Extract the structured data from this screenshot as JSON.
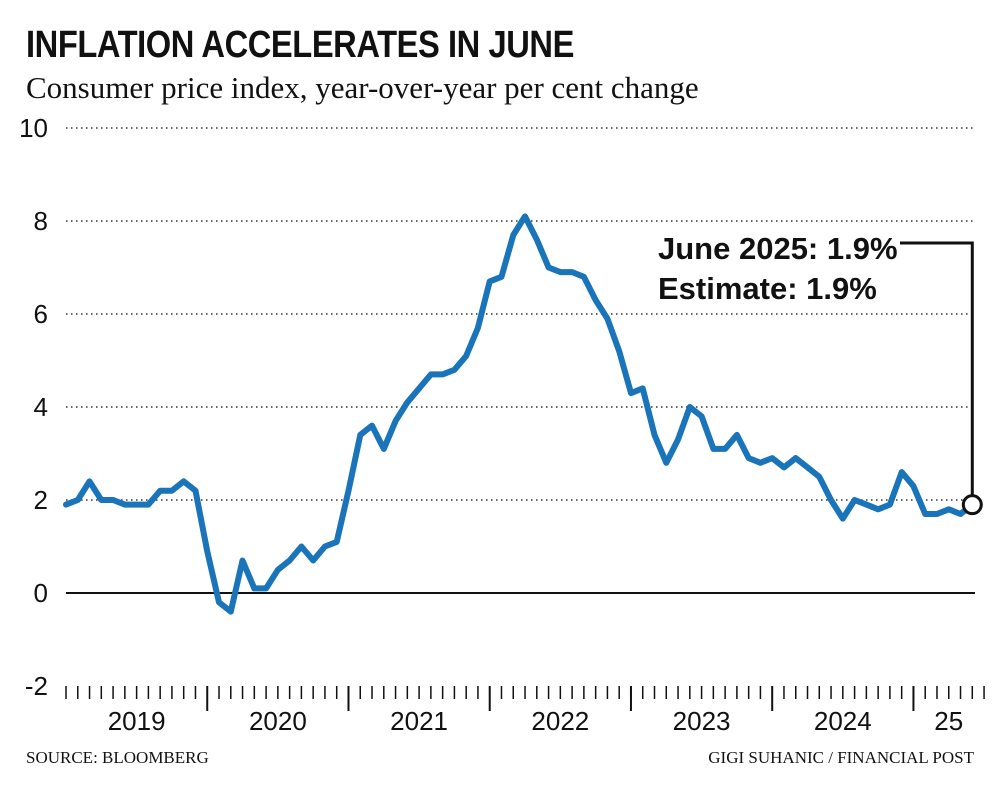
{
  "header": {
    "title": "INFLATION ACCELERATES IN JUNE",
    "subtitle": "Consumer price index, year-over-year per cent change"
  },
  "footer": {
    "source": "SOURCE: BLOOMBERG",
    "credit": "GIGI SUHANIC / FINANCIAL POST"
  },
  "colors": {
    "line": "#1a74ba",
    "text": "#111111"
  },
  "chart_data": {
    "type": "line",
    "title": "INFLATION ACCELERATES IN JUNE",
    "subtitle": "Consumer price index, year-over-year per cent change",
    "ylim": [
      -2,
      10
    ],
    "yticks": [
      10,
      8,
      6,
      4,
      2,
      0,
      -2
    ],
    "grid": true,
    "x_tick_labels": [
      "2019",
      "2020",
      "2021",
      "2022",
      "2023",
      "2024",
      "25"
    ],
    "annotation": {
      "line1": "June 2025: 1.9%",
      "line2": "Estimate: 1.9%"
    },
    "series": [
      {
        "x": [
          "2019-01",
          "2019-02",
          "2019-03",
          "2019-04",
          "2019-05",
          "2019-06",
          "2019-07",
          "2019-08",
          "2019-09",
          "2019-10",
          "2019-11",
          "2019-12",
          "2020-01",
          "2020-02",
          "2020-03",
          "2020-04",
          "2020-05",
          "2020-06",
          "2020-07",
          "2020-08",
          "2020-09",
          "2020-10",
          "2020-11",
          "2020-12",
          "2021-01",
          "2021-02",
          "2021-03",
          "2021-04",
          "2021-05",
          "2021-06",
          "2021-07",
          "2021-08",
          "2021-09",
          "2021-10",
          "2021-11",
          "2021-12",
          "2022-01",
          "2022-02",
          "2022-03",
          "2022-04",
          "2022-05",
          "2022-06",
          "2022-07",
          "2022-08",
          "2022-09",
          "2022-10",
          "2022-11",
          "2022-12",
          "2023-01",
          "2023-02",
          "2023-03",
          "2023-04",
          "2023-05",
          "2023-06",
          "2023-07",
          "2023-08",
          "2023-09",
          "2023-10",
          "2023-11",
          "2023-12",
          "2024-01",
          "2024-02",
          "2024-03",
          "2024-04",
          "2024-05",
          "2024-06",
          "2024-07",
          "2024-08",
          "2024-09",
          "2024-10",
          "2024-11",
          "2024-12",
          "2025-01",
          "2025-02",
          "2025-03",
          "2025-04",
          "2025-05",
          "2025-06"
        ],
        "values": [
          1.9,
          2.0,
          2.4,
          2.0,
          2.0,
          1.9,
          1.9,
          1.9,
          2.2,
          2.2,
          2.4,
          2.2,
          0.9,
          -0.2,
          -0.4,
          0.7,
          0.1,
          0.1,
          0.5,
          0.7,
          1.0,
          0.7,
          1.0,
          1.1,
          2.2,
          3.4,
          3.6,
          3.1,
          3.7,
          4.1,
          4.4,
          4.7,
          4.7,
          4.8,
          5.1,
          5.7,
          6.7,
          6.8,
          7.7,
          8.1,
          7.6,
          7.0,
          6.9,
          6.9,
          6.8,
          6.3,
          5.9,
          5.2,
          4.3,
          4.4,
          3.4,
          2.8,
          3.3,
          4.0,
          3.8,
          3.1,
          3.1,
          3.4,
          2.9,
          2.8,
          2.9,
          2.7,
          2.9,
          2.7,
          2.5,
          2.0,
          1.6,
          2.0,
          1.9,
          1.8,
          1.9,
          2.6,
          2.3,
          1.7,
          1.7,
          1.8,
          1.7,
          1.9
        ]
      }
    ]
  }
}
